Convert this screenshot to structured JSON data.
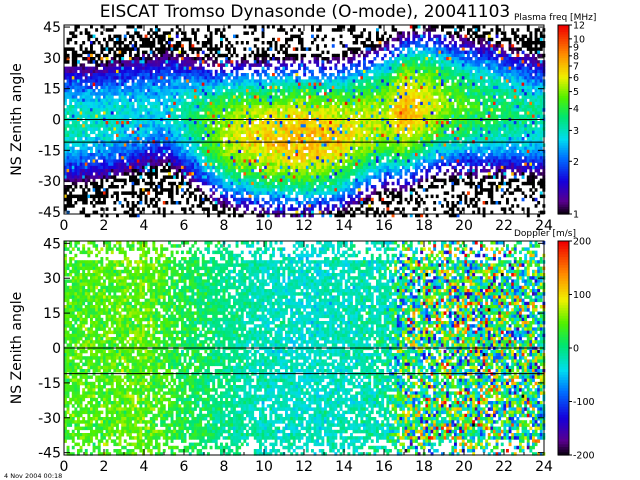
{
  "figure": {
    "title": "EISCAT Tromso Dynasonde (O-mode),  20041103",
    "timestamp": "4 Nov 2004 00:18"
  },
  "chart_data": [
    {
      "type": "heatmap",
      "ylabel": "NS Zenith angle",
      "xlim": [
        0,
        24
      ],
      "ylim": [
        -46,
        46
      ],
      "xticks": [
        0,
        2,
        4,
        6,
        8,
        10,
        12,
        14,
        16,
        18,
        20,
        22,
        24
      ],
      "yticks": [
        45,
        30,
        15,
        0,
        -15,
        -30,
        -45
      ],
      "reference_lines_y": [
        0,
        -11
      ],
      "colorbar": {
        "title": "Plasma freq [MHz]",
        "scale": "log",
        "range": [
          1,
          12
        ],
        "ticks": [
          12,
          10,
          9,
          8,
          7,
          6,
          5,
          4,
          3,
          2,
          1
        ]
      },
      "summary_profile": {
        "hour": [
          0,
          1,
          2,
          3,
          4,
          5,
          6,
          7,
          8,
          9,
          10,
          11,
          12,
          13,
          14,
          15,
          16,
          17,
          18,
          19,
          20,
          21,
          22,
          23,
          24
        ],
        "center_deg": [
          -2,
          -1,
          0,
          2,
          4,
          6,
          2,
          -3,
          -6,
          -7,
          -8,
          -8,
          -8,
          -8,
          -6,
          -2,
          2,
          5,
          8,
          8,
          7,
          6,
          5,
          3,
          2
        ],
        "peak_mhz": [
          3.2,
          3.0,
          3.0,
          2.9,
          2.8,
          2.7,
          3.3,
          4.2,
          5.5,
          6.2,
          6.8,
          7.2,
          7.4,
          7.0,
          6.4,
          5.8,
          5.5,
          7.5,
          6.2,
          5.0,
          4.4,
          4.0,
          3.7,
          3.4,
          3.2
        ]
      }
    },
    {
      "type": "heatmap",
      "ylabel": "NS Zenith angle",
      "xlim": [
        0,
        24
      ],
      "ylim": [
        -46,
        46
      ],
      "xticks": [
        0,
        2,
        4,
        6,
        8,
        10,
        12,
        14,
        16,
        18,
        20,
        22,
        24
      ],
      "yticks": [
        45,
        30,
        15,
        0,
        -15,
        -30,
        -45
      ],
      "reference_lines_y": [
        0,
        -11
      ],
      "colorbar": {
        "title": "Doppler [m/s]",
        "scale": "linear",
        "range": [
          -200,
          200
        ],
        "ticks": [
          200,
          100,
          0,
          -100,
          -200
        ]
      },
      "summary_profile": {
        "hour": [
          0,
          2,
          4,
          6,
          8,
          10,
          12,
          14,
          16,
          17,
          18,
          20,
          22,
          24
        ],
        "mean_ms": [
          40,
          45,
          50,
          20,
          0,
          -20,
          -25,
          -20,
          -10,
          0,
          10,
          20,
          10,
          0
        ],
        "spread_ms": [
          30,
          35,
          35,
          35,
          30,
          30,
          30,
          30,
          40,
          150,
          170,
          180,
          170,
          150
        ]
      }
    }
  ]
}
